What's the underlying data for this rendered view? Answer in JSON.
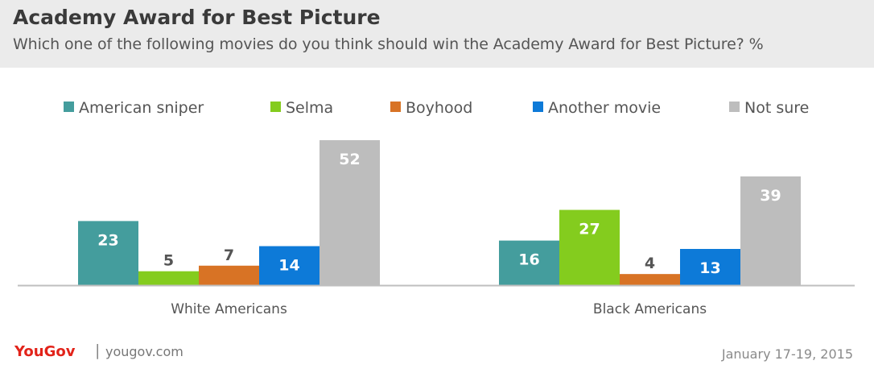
{
  "header": {
    "title": "Academy Award for Best Picture",
    "subtitle": "Which one of the following movies do you think should win the Academy Award for Best Picture? %"
  },
  "footer": {
    "brand": "YouGov",
    "separator": "|",
    "site": "yougov.com",
    "date": "January 17-19, 2015"
  },
  "chart_data": {
    "type": "bar",
    "title": "Academy Award for Best Picture",
    "subtitle": "Which one of the following movies do you think should win the Academy Award for Best Picture? %",
    "categories": [
      "White Americans",
      "Black Americans"
    ],
    "series": [
      {
        "name": "American sniper",
        "color": "#449d9d",
        "values": [
          23,
          16
        ]
      },
      {
        "name": "Selma",
        "color": "#84cc1e",
        "values": [
          5,
          27
        ]
      },
      {
        "name": "Boyhood",
        "color": "#d87325",
        "values": [
          7,
          4
        ]
      },
      {
        "name": "Another movie",
        "color": "#0d7ad8",
        "values": [
          14,
          13
        ]
      },
      {
        "name": "Not sure",
        "color": "#bdbdbd",
        "values": [
          52,
          39
        ]
      }
    ],
    "ylim": [
      0,
      52
    ],
    "grid": false,
    "legend": "top",
    "data_labels": true
  }
}
